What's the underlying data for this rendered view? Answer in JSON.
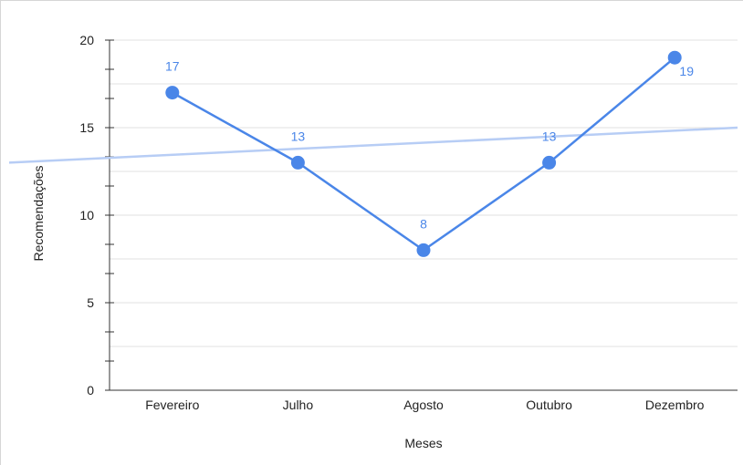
{
  "chart_data": {
    "type": "line",
    "title": "",
    "xlabel": "Meses",
    "ylabel": "Recomendações",
    "categories": [
      "Fevereiro",
      "Julho",
      "Agosto",
      "Outubro",
      "Dezembro"
    ],
    "series": [
      {
        "values": [
          17,
          13,
          8,
          13,
          19
        ],
        "data_labels": [
          "17",
          "13",
          "8",
          "13",
          "19"
        ]
      }
    ],
    "trendline": {
      "type": "linear",
      "start": 13,
      "end": 15
    },
    "ylim": [
      0,
      20
    ],
    "yticks": [
      0,
      5,
      10,
      15,
      20
    ],
    "grid": true,
    "legend": "none",
    "colors": {
      "series": "#4a86e8",
      "trendline": "#b7cdf5",
      "grid": "#e0e0e0",
      "axis": "#333333"
    }
  }
}
